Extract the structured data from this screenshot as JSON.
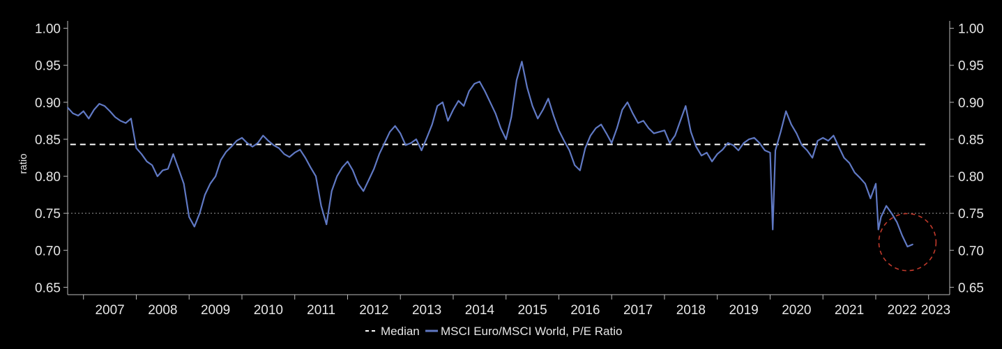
{
  "chart_data": {
    "type": "line",
    "title": "",
    "ylabel": "ratio",
    "xlabel": "",
    "ylim": [
      0.64,
      1.01
    ],
    "y_ticks": [
      "0.65",
      "0.70",
      "0.75",
      "0.80",
      "0.85",
      "0.90",
      "0.95",
      "1.00"
    ],
    "x_ticks": [
      "2007",
      "2008",
      "2009",
      "2010",
      "2011",
      "2012",
      "2013",
      "2014",
      "2015",
      "2016",
      "2017",
      "2018",
      "2019",
      "2020",
      "2021",
      "2022",
      "2023"
    ],
    "xlim": [
      2006.7,
      2023.4
    ],
    "reference_lines": [
      {
        "name": "Median",
        "value": 0.843,
        "style": "dashed",
        "color": "#ffffff",
        "x_start": 2006.75,
        "x_end": 2022.95
      },
      {
        "name": "",
        "value": 0.75,
        "style": "dotted",
        "color": "#9a9a9a"
      }
    ],
    "highlight_circle": {
      "x": 2022.6,
      "y": 0.711,
      "color": "#c0392b"
    },
    "series": [
      {
        "name": "MSCI Euro/MSCI World, P/E Ratio",
        "color": "#6079c4",
        "x": [
          2006.7,
          2006.8,
          2006.9,
          2007.0,
          2007.1,
          2007.2,
          2007.3,
          2007.4,
          2007.5,
          2007.6,
          2007.7,
          2007.8,
          2007.9,
          2008.0,
          2008.1,
          2008.2,
          2008.3,
          2008.4,
          2008.5,
          2008.6,
          2008.7,
          2008.8,
          2008.9,
          2009.0,
          2009.1,
          2009.2,
          2009.3,
          2009.4,
          2009.5,
          2009.6,
          2009.7,
          2009.8,
          2009.9,
          2010.0,
          2010.1,
          2010.2,
          2010.3,
          2010.4,
          2010.5,
          2010.6,
          2010.7,
          2010.8,
          2010.9,
          2011.0,
          2011.1,
          2011.2,
          2011.3,
          2011.4,
          2011.5,
          2011.6,
          2011.7,
          2011.8,
          2011.9,
          2012.0,
          2012.1,
          2012.2,
          2012.3,
          2012.4,
          2012.5,
          2012.6,
          2012.7,
          2012.8,
          2012.9,
          2013.0,
          2013.1,
          2013.2,
          2013.3,
          2013.4,
          2013.5,
          2013.6,
          2013.7,
          2013.8,
          2013.9,
          2014.0,
          2014.1,
          2014.2,
          2014.3,
          2014.4,
          2014.5,
          2014.6,
          2014.7,
          2014.8,
          2014.9,
          2015.0,
          2015.1,
          2015.2,
          2015.3,
          2015.4,
          2015.5,
          2015.6,
          2015.7,
          2015.8,
          2015.9,
          2016.0,
          2016.1,
          2016.2,
          2016.3,
          2016.4,
          2016.5,
          2016.6,
          2016.7,
          2016.8,
          2016.9,
          2017.0,
          2017.1,
          2017.2,
          2017.3,
          2017.4,
          2017.5,
          2017.6,
          2017.7,
          2017.8,
          2017.9,
          2018.0,
          2018.1,
          2018.2,
          2018.3,
          2018.4,
          2018.5,
          2018.6,
          2018.7,
          2018.8,
          2018.9,
          2019.0,
          2019.1,
          2019.2,
          2019.3,
          2019.4,
          2019.5,
          2019.6,
          2019.7,
          2019.8,
          2019.9,
          2020.0,
          2020.05,
          2020.1,
          2020.2,
          2020.3,
          2020.4,
          2020.5,
          2020.6,
          2020.7,
          2020.8,
          2020.9,
          2021.0,
          2021.1,
          2021.2,
          2021.3,
          2021.4,
          2021.5,
          2021.6,
          2021.7,
          2021.8,
          2021.9,
          2022.0,
          2022.05,
          2022.1,
          2022.2,
          2022.3,
          2022.4,
          2022.5,
          2022.6,
          2022.7
        ],
        "values": [
          0.893,
          0.885,
          0.882,
          0.888,
          0.878,
          0.89,
          0.898,
          0.895,
          0.888,
          0.88,
          0.875,
          0.872,
          0.878,
          0.838,
          0.83,
          0.82,
          0.815,
          0.8,
          0.808,
          0.81,
          0.83,
          0.81,
          0.79,
          0.745,
          0.732,
          0.75,
          0.775,
          0.79,
          0.8,
          0.822,
          0.833,
          0.84,
          0.848,
          0.852,
          0.845,
          0.84,
          0.845,
          0.855,
          0.848,
          0.842,
          0.838,
          0.83,
          0.826,
          0.832,
          0.836,
          0.825,
          0.812,
          0.8,
          0.76,
          0.735,
          0.78,
          0.8,
          0.812,
          0.82,
          0.808,
          0.79,
          0.78,
          0.795,
          0.81,
          0.83,
          0.845,
          0.86,
          0.868,
          0.858,
          0.842,
          0.845,
          0.85,
          0.835,
          0.852,
          0.87,
          0.895,
          0.9,
          0.875,
          0.89,
          0.902,
          0.895,
          0.915,
          0.925,
          0.928,
          0.915,
          0.9,
          0.885,
          0.865,
          0.85,
          0.88,
          0.93,
          0.955,
          0.92,
          0.895,
          0.878,
          0.89,
          0.905,
          0.882,
          0.862,
          0.848,
          0.835,
          0.815,
          0.808,
          0.838,
          0.855,
          0.865,
          0.87,
          0.858,
          0.845,
          0.865,
          0.89,
          0.9,
          0.885,
          0.872,
          0.875,
          0.865,
          0.858,
          0.86,
          0.862,
          0.845,
          0.855,
          0.875,
          0.895,
          0.86,
          0.84,
          0.828,
          0.832,
          0.82,
          0.83,
          0.836,
          0.845,
          0.842,
          0.835,
          0.845,
          0.85,
          0.852,
          0.845,
          0.835,
          0.832,
          0.728,
          0.835,
          0.86,
          0.888,
          0.87,
          0.858,
          0.842,
          0.835,
          0.825,
          0.848,
          0.852,
          0.848,
          0.855,
          0.84,
          0.825,
          0.818,
          0.805,
          0.798,
          0.79,
          0.77,
          0.79,
          0.728,
          0.745,
          0.76,
          0.75,
          0.738,
          0.72,
          0.705,
          0.708
        ]
      }
    ],
    "legend": {
      "position": "bottom-center",
      "entries": [
        {
          "label": "Median",
          "style": "dashed",
          "color": "#ffffff"
        },
        {
          "label": "MSCI Euro/MSCI World, P/E Ratio",
          "style": "solid",
          "color": "#6079c4"
        }
      ]
    }
  }
}
